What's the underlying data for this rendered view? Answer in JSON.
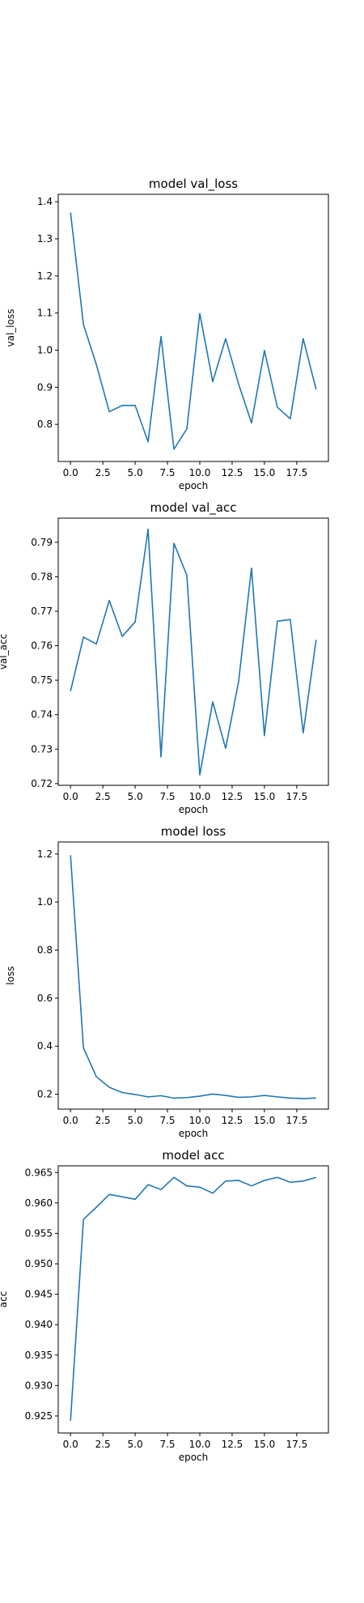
{
  "line_color": "#1f77b4",
  "chart_data": [
    {
      "type": "line",
      "title": "model val_loss",
      "xlabel": "epoch",
      "ylabel": "val_loss",
      "xlim": [
        -0.95,
        19.95
      ],
      "ylim": [
        0.7,
        1.42
      ],
      "xticks": [
        0,
        2.5,
        5,
        7.5,
        10,
        12.5,
        15,
        17.5
      ],
      "xtick_labels": [
        "0.0",
        "2.5",
        "5.0",
        "7.5",
        "10.0",
        "12.5",
        "15.0",
        "17.5"
      ],
      "yticks": [
        0.8,
        0.9,
        1.0,
        1.1,
        1.2,
        1.3,
        1.4
      ],
      "ytick_labels": [
        "0.8",
        "0.9",
        "1.0",
        "1.1",
        "1.2",
        "1.3",
        "1.4"
      ],
      "grid": false,
      "series": [
        {
          "x": [
            0,
            1,
            2,
            3,
            4,
            5,
            6,
            7,
            8,
            9,
            10,
            11,
            12,
            13,
            14,
            15,
            16,
            17,
            18,
            19
          ],
          "values": [
            1.371,
            1.069,
            0.961,
            0.834,
            0.851,
            0.851,
            0.753,
            1.037,
            0.733,
            0.788,
            1.099,
            0.915,
            1.031,
            0.909,
            0.804,
            0.999,
            0.846,
            0.815,
            1.031,
            0.894
          ]
        }
      ]
    },
    {
      "type": "line",
      "title": "model val_acc",
      "xlabel": "epoch",
      "ylabel": "val_acc",
      "xlim": [
        -0.95,
        19.95
      ],
      "ylim": [
        0.7195,
        0.797
      ],
      "xticks": [
        0,
        2.5,
        5,
        7.5,
        10,
        12.5,
        15,
        17.5
      ],
      "xtick_labels": [
        "0.0",
        "2.5",
        "5.0",
        "7.5",
        "10.0",
        "12.5",
        "15.0",
        "17.5"
      ],
      "yticks": [
        0.72,
        0.73,
        0.74,
        0.75,
        0.76,
        0.77,
        0.78,
        0.79
      ],
      "ytick_labels": [
        "0.72",
        "0.73",
        "0.74",
        "0.75",
        "0.76",
        "0.77",
        "0.78",
        "0.79"
      ],
      "grid": false,
      "series": [
        {
          "x": [
            0,
            1,
            2,
            3,
            4,
            5,
            6,
            7,
            8,
            9,
            10,
            11,
            12,
            13,
            14,
            15,
            16,
            17,
            18,
            19
          ],
          "values": [
            0.7468,
            0.7625,
            0.7605,
            0.7731,
            0.7627,
            0.7669,
            0.7938,
            0.7277,
            0.7897,
            0.7804,
            0.7225,
            0.7437,
            0.7302,
            0.7495,
            0.7825,
            0.7339,
            0.7671,
            0.7676,
            0.7347,
            0.7617
          ]
        }
      ]
    },
    {
      "type": "line",
      "title": "model loss",
      "xlabel": "epoch",
      "ylabel": "loss",
      "xlim": [
        -0.95,
        19.95
      ],
      "ylim": [
        0.138,
        1.25
      ],
      "xticks": [
        0,
        2.5,
        5,
        7.5,
        10,
        12.5,
        15,
        17.5
      ],
      "xtick_labels": [
        "0.0",
        "2.5",
        "5.0",
        "7.5",
        "10.0",
        "12.5",
        "15.0",
        "17.5"
      ],
      "yticks": [
        0.2,
        0.4,
        0.6,
        0.8,
        1.0,
        1.2
      ],
      "ytick_labels": [
        "0.2",
        "0.4",
        "0.6",
        "0.8",
        "1.0",
        "1.2"
      ],
      "grid": false,
      "series": [
        {
          "x": [
            0,
            1,
            2,
            3,
            4,
            5,
            6,
            7,
            8,
            9,
            10,
            11,
            12,
            13,
            14,
            15,
            16,
            17,
            18,
            19
          ],
          "values": [
            1.195,
            0.393,
            0.273,
            0.229,
            0.207,
            0.199,
            0.189,
            0.194,
            0.184,
            0.186,
            0.192,
            0.201,
            0.195,
            0.187,
            0.189,
            0.195,
            0.189,
            0.184,
            0.182,
            0.184
          ]
        }
      ]
    },
    {
      "type": "line",
      "title": "model acc",
      "xlabel": "epoch",
      "ylabel": "acc",
      "xlim": [
        -0.95,
        19.95
      ],
      "ylim": [
        0.9222,
        0.9661
      ],
      "xticks": [
        0,
        2.5,
        5,
        7.5,
        10,
        12.5,
        15,
        17.5
      ],
      "xtick_labels": [
        "0.0",
        "2.5",
        "5.0",
        "7.5",
        "10.0",
        "12.5",
        "15.0",
        "17.5"
      ],
      "yticks": [
        0.925,
        0.93,
        0.935,
        0.94,
        0.945,
        0.95,
        0.955,
        0.96,
        0.965
      ],
      "ytick_labels": [
        "0.925",
        "0.930",
        "0.935",
        "0.940",
        "0.945",
        "0.950",
        "0.955",
        "0.960",
        "0.965"
      ],
      "grid": false,
      "series": [
        {
          "x": [
            0,
            1,
            2,
            3,
            4,
            5,
            6,
            7,
            8,
            9,
            10,
            11,
            12,
            13,
            14,
            15,
            16,
            17,
            18,
            19
          ],
          "values": [
            0.9242,
            0.9573,
            0.9593,
            0.9614,
            0.961,
            0.9606,
            0.963,
            0.9622,
            0.9642,
            0.9628,
            0.9626,
            0.9616,
            0.9636,
            0.9637,
            0.9628,
            0.9637,
            0.9642,
            0.9634,
            0.9636,
            0.9642
          ]
        }
      ]
    }
  ]
}
